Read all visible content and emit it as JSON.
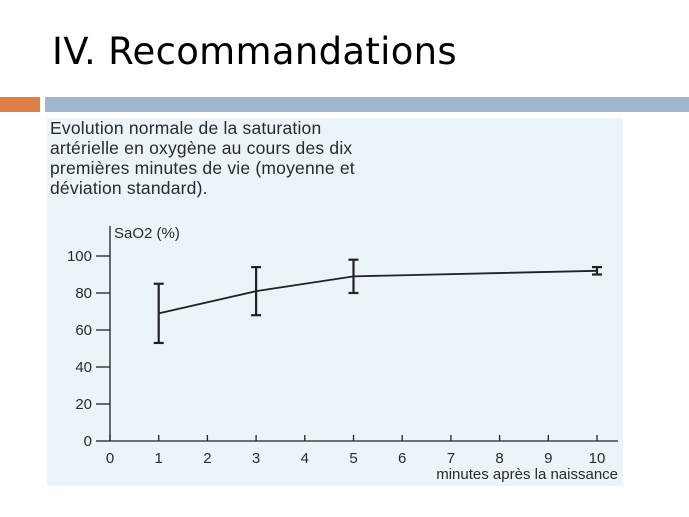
{
  "slide": {
    "title": "IV. Recommandations"
  },
  "caption": {
    "lines": [
      "Evolution normale de la saturation",
      "artérielle en oxygène au cours des dix",
      "premières minutes de vie (moyenne et",
      "déviation standard)."
    ]
  },
  "colors": {
    "accent_orange": "#dd8047",
    "accent_blue": "#9fb8cd",
    "panel_background": "#eaf4f9"
  },
  "chart_data": {
    "type": "line",
    "ylabel": "SaO2 (%)",
    "xlabel": "minutes après la naissance",
    "xlim": [
      0,
      10
    ],
    "ylim": [
      0,
      100
    ],
    "xticks": [
      0,
      1,
      2,
      3,
      4,
      5,
      6,
      7,
      8,
      9,
      10
    ],
    "yticks": [
      0,
      20,
      40,
      60,
      80,
      100
    ],
    "grid": false,
    "series": [
      {
        "x": [
          1,
          3,
          5,
          10
        ],
        "y": [
          69,
          81,
          89,
          92
        ],
        "error": [
          16,
          13,
          9,
          2
        ]
      }
    ]
  }
}
